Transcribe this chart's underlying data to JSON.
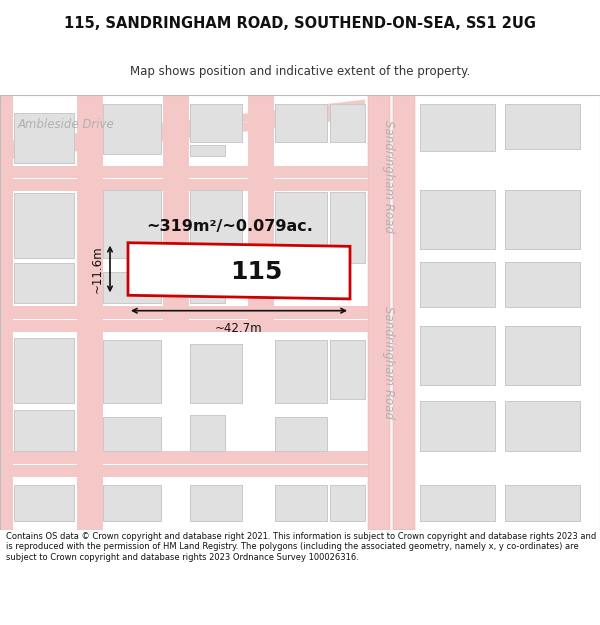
{
  "title_line1": "115, SANDRINGHAM ROAD, SOUTHEND-ON-SEA, SS1 2UG",
  "title_line2": "Map shows position and indicative extent of the property.",
  "footer_text": "Contains OS data © Crown copyright and database right 2021. This information is subject to Crown copyright and database rights 2023 and is reproduced with the permission of HM Land Registry. The polygons (including the associated geometry, namely x, y co-ordinates) are subject to Crown copyright and database rights 2023 Ordnance Survey 100026316.",
  "bg_color": "#ffffff",
  "map_bg": "#f2f2f2",
  "road_fill": "#f5c8c8",
  "road_edge": "#e8a8a8",
  "building_fill": "#e0e0e0",
  "building_edge": "#c8c8c8",
  "highlight_fill": "#ffffff",
  "highlight_edge": "#cc0000",
  "street_label_color": "#b0b0b0",
  "annotation_color": "#111111",
  "area_text": "~319m²/~0.079ac.",
  "width_text": "~42.7m",
  "height_text": "~11.6m",
  "property_label": "115",
  "street1": "Ambleside Drive",
  "street2_top": "Sandringham Road",
  "street2_bottom": "Sandringham Road",
  "title_fontsize": 10.5,
  "subtitle_fontsize": 8.5,
  "footer_fontsize": 6.0,
  "label_fontsize": 8.0,
  "area_fontsize": 11.5,
  "prop_fontsize": 18,
  "dim_fontsize": 8.5,
  "street_fontsize": 8.5
}
